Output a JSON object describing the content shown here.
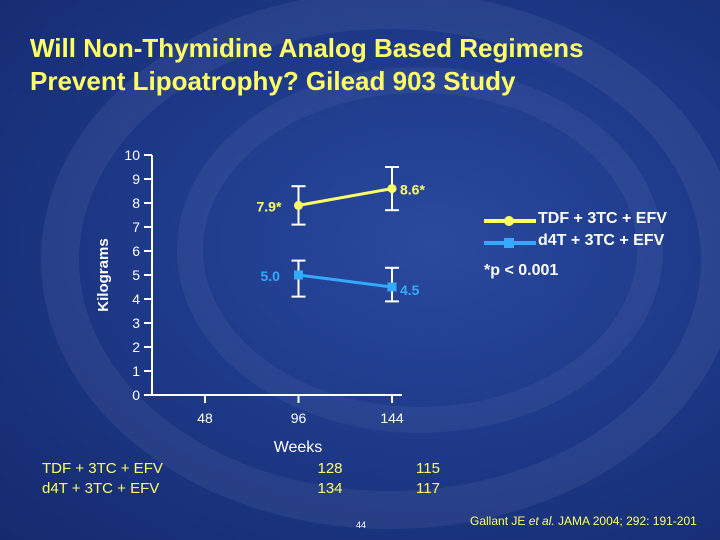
{
  "title_lines": [
    "Will Non-Thymidine Analog Based Regimens",
    "Prevent Lipoatrophy?   Gilead 903 Study"
  ],
  "colors": {
    "title": "#ffff66",
    "tdf_series": "#ffff66",
    "d4t_series": "#33aaff",
    "axis": "#ffffff",
    "background": "#1e3a8a"
  },
  "chart_data": {
    "type": "line",
    "xlabel": "Weeks",
    "ylabel": "Kilograms",
    "x_ticks": [
      48,
      96,
      144
    ],
    "y_ticks": [
      0,
      1,
      2,
      3,
      4,
      5,
      6,
      7,
      8,
      9,
      10
    ],
    "ylim": [
      0,
      10
    ],
    "series": [
      {
        "name": "TDF + 3TC + EFV",
        "x": [
          96,
          144
        ],
        "values": [
          7.9,
          8.6
        ],
        "labels": [
          "7.9*",
          "8.6*"
        ],
        "error_low": [
          7.1,
          7.7
        ],
        "error_high": [
          8.7,
          9.5
        ]
      },
      {
        "name": "d4T + 3TC + EFV",
        "x": [
          96,
          144
        ],
        "values": [
          5.0,
          4.5
        ],
        "labels": [
          "5.0",
          "4.5"
        ],
        "error_low": [
          4.1,
          3.9
        ],
        "error_high": [
          5.6,
          5.3
        ]
      }
    ],
    "legend_position": "right",
    "grid": false,
    "annotation": "*p < 0.001"
  },
  "n_table": {
    "rows": [
      {
        "label": "TDF + 3TC + EFV",
        "values": [
          "128",
          "115"
        ]
      },
      {
        "label": "d4T + 3TC + EFV",
        "values": [
          "134",
          "117"
        ]
      }
    ]
  },
  "slide_number": "44",
  "citation": {
    "prefix": "Gallant JE ",
    "italic": "et al.",
    "suffix": " JAMA 2004; 292: 191-201"
  }
}
